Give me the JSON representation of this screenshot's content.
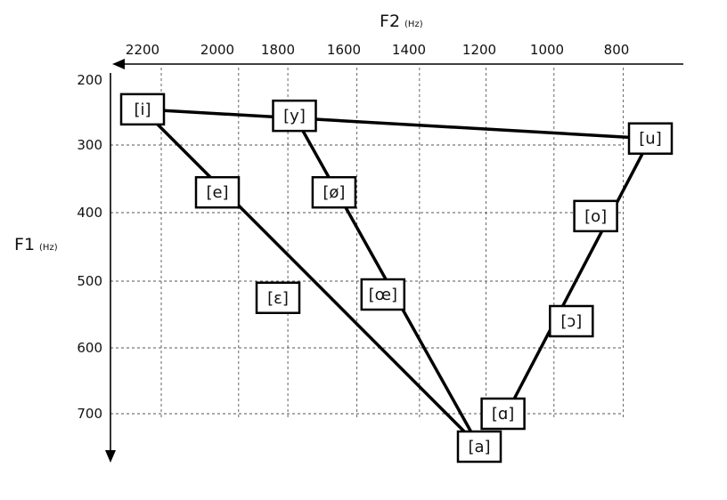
{
  "chart_data": {
    "type": "diagram",
    "x_axis": {
      "title": "F",
      "title_subscript": "2",
      "unit": "(Hz)",
      "ticks": [
        2200,
        2000,
        1800,
        1600,
        1400,
        1200,
        1000,
        800
      ]
    },
    "y_axis": {
      "title": "F",
      "title_subscript": "1",
      "unit": "(Hz)",
      "ticks": [
        200,
        300,
        400,
        500,
        600,
        700
      ]
    },
    "grid_x": [
      2150,
      1930,
      1770,
      1560,
      1370,
      1180,
      980,
      790
    ],
    "grid_y": [
      300,
      400,
      500,
      600,
      700
    ],
    "vowels": [
      {
        "label": "[i]",
        "f2": 2200,
        "f1": 245
      },
      {
        "label": "[y]",
        "f2": 1750,
        "f1": 255
      },
      {
        "label": "[u]",
        "f2": 750,
        "f1": 290
      },
      {
        "label": "[e]",
        "f2": 2000,
        "f1": 370
      },
      {
        "label": "[ø]",
        "f2": 1630,
        "f1": 370
      },
      {
        "label": "[o]",
        "f2": 860,
        "f1": 405
      },
      {
        "label": "[ɛ]",
        "f2": 1800,
        "f1": 525
      },
      {
        "label": "[œ]",
        "f2": 1480,
        "f1": 520
      },
      {
        "label": "[ɔ]",
        "f2": 930,
        "f1": 560
      },
      {
        "label": "[ɑ]",
        "f2": 1130,
        "f1": 700
      },
      {
        "label": "[a]",
        "f2": 1200,
        "f1": 750
      }
    ],
    "lines": [
      {
        "from": [
          2200,
          245
        ],
        "to": [
          750,
          290
        ]
      },
      {
        "from": [
          2200,
          245
        ],
        "to": [
          1200,
          750
        ]
      },
      {
        "from": [
          1750,
          255
        ],
        "to": [
          1200,
          750
        ]
      },
      {
        "from": [
          750,
          290
        ],
        "to": [
          1120,
          700
        ]
      }
    ]
  }
}
